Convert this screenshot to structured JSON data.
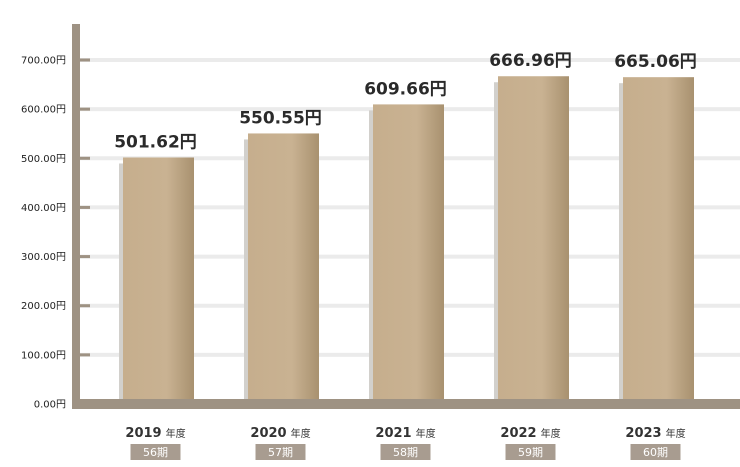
{
  "chart_data": {
    "type": "bar",
    "categories": [
      "2019",
      "2020",
      "2021",
      "2022",
      "2023"
    ],
    "category_suffix": "年度",
    "periods": [
      "56期",
      "57期",
      "58期",
      "59期",
      "60期"
    ],
    "values": [
      501.62,
      550.55,
      609.66,
      666.96,
      665.06
    ],
    "value_labels": [
      "501.62円",
      "550.55円",
      "609.66円",
      "666.96円",
      "665.06円"
    ],
    "yticks": [
      0,
      100,
      200,
      300,
      400,
      500,
      600,
      700
    ],
    "ytick_labels": [
      "0.00円",
      "100.00円",
      "200.00円",
      "300.00円",
      "400.00円",
      "500.00円",
      "600.00円",
      "700.00円"
    ],
    "ylim": [
      0,
      750
    ],
    "grid": true,
    "colors": {
      "bar": "#c9b190",
      "bar_shadow": "#d2d0cc",
      "axis": "#9e9283",
      "grid": "#ebebeb",
      "period_badge": "#a89c90"
    }
  }
}
